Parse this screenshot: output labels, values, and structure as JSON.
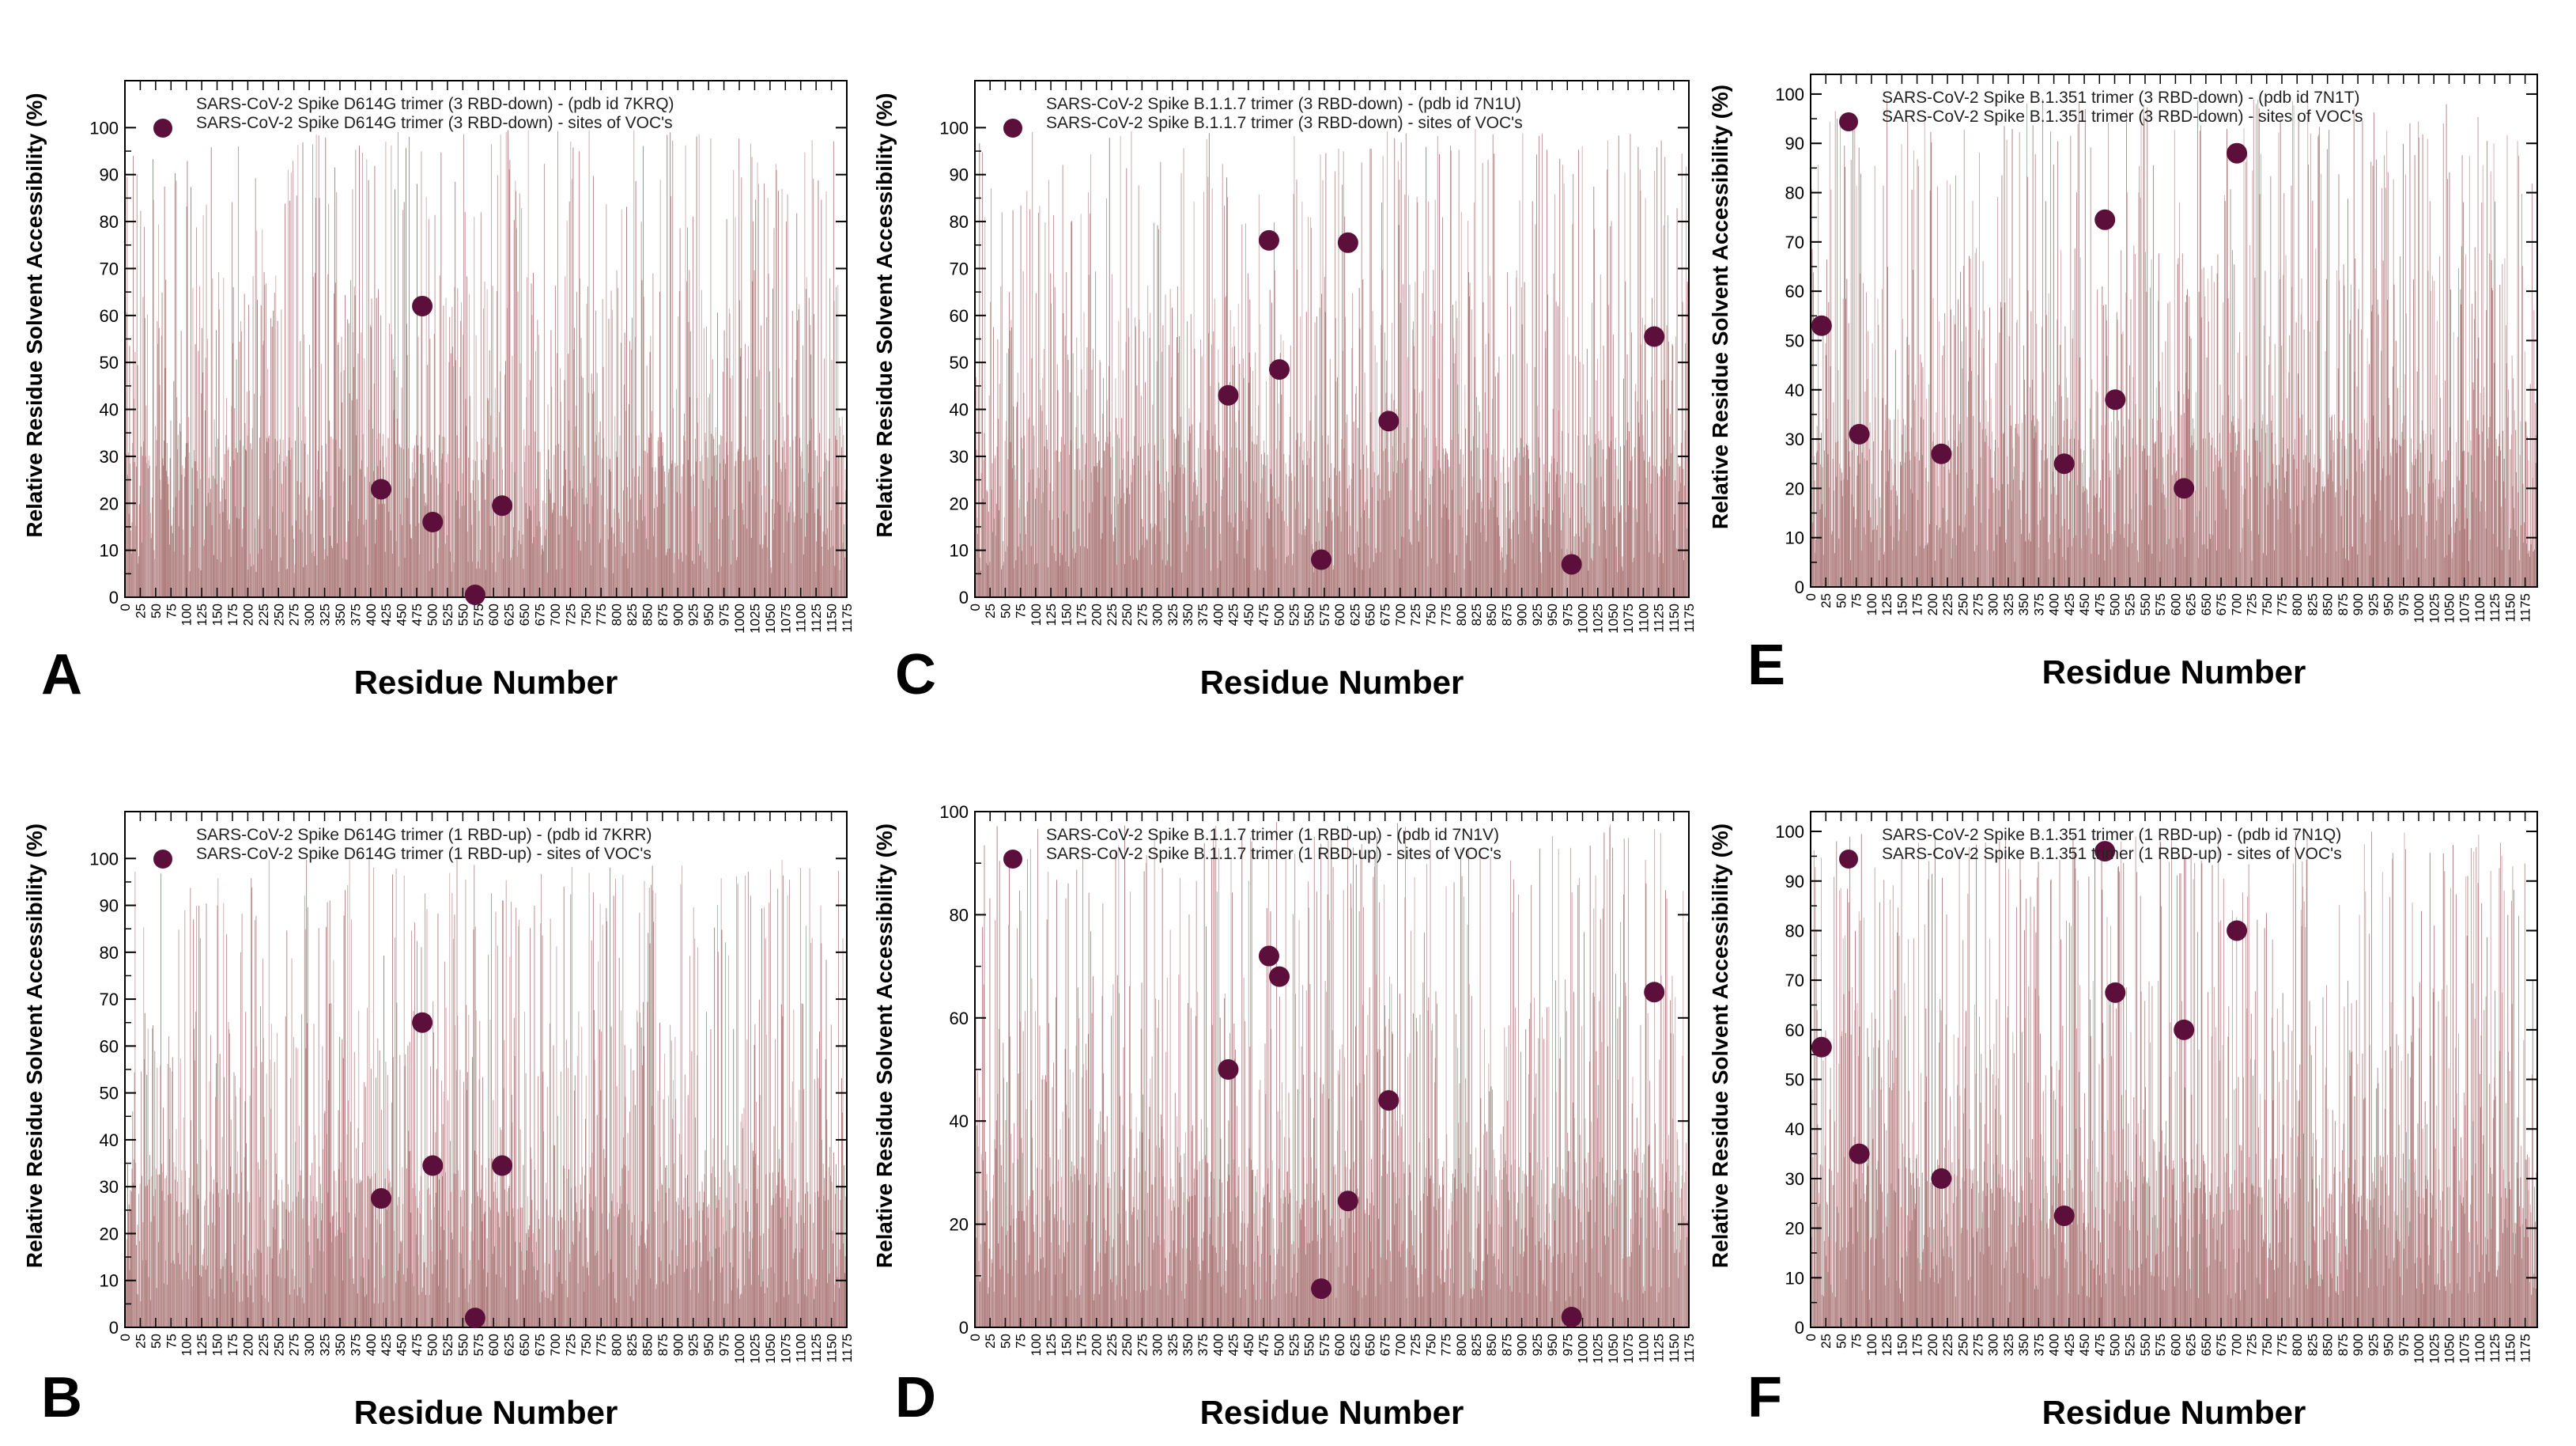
{
  "colors": {
    "bars": "#a97373",
    "dots": "#5c0f3a",
    "axes": "#000000"
  },
  "chart_data": [
    {
      "panel": "A",
      "type": "bar",
      "title": "",
      "xlabel": "Residue Number",
      "ylabel": "Relative Residue Solvent Accessibility (%)",
      "xlim": [
        0,
        1175
      ],
      "ylim": [
        0,
        110
      ],
      "y_ticks": [
        0,
        10,
        20,
        30,
        40,
        50,
        60,
        70,
        80,
        90,
        100
      ],
      "x_ticks": [
        0,
        25,
        50,
        75,
        100,
        125,
        150,
        175,
        200,
        225,
        250,
        275,
        300,
        325,
        350,
        375,
        400,
        425,
        450,
        475,
        500,
        525,
        550,
        575,
        600,
        625,
        650,
        675,
        700,
        725,
        750,
        775,
        800,
        825,
        850,
        875,
        900,
        925,
        950,
        975,
        1000,
        1025,
        1050,
        1075,
        1100,
        1125,
        1150,
        1175
      ],
      "legend": {
        "placement": "top-left",
        "entries": [
          "SARS-CoV-2 Spike D614G trimer (3 RBD-down)  - (pdb id 7KRQ)",
          "SARS-CoV-2 Spike D614G trimer (3 RBD-down) - sites of VOC's"
        ]
      },
      "series": [
        {
          "name": "SARS-CoV-2 Spike D614G trimer (3 RBD-down)  - (pdb id 7KRQ)",
          "kind": "bars",
          "x_range": [
            0,
            1175
          ],
          "y_range": [
            0,
            100
          ]
        },
        {
          "name": "SARS-CoV-2 Spike D614G trimer (3 RBD-down) - sites of VOC's",
          "kind": "scatter",
          "x": [
            417,
            484,
            501,
            570,
            614
          ],
          "y": [
            23,
            62,
            16,
            0.5,
            19.5
          ]
        }
      ]
    },
    {
      "panel": "B",
      "type": "bar",
      "title": "",
      "xlabel": "Residue Number",
      "ylabel": "Relative Residue Solvent Accessibility (%)",
      "xlim": [
        0,
        1175
      ],
      "ylim": [
        0,
        110
      ],
      "y_ticks": [
        0,
        10,
        20,
        30,
        40,
        50,
        60,
        70,
        80,
        90,
        100
      ],
      "x_ticks": [
        0,
        25,
        50,
        75,
        100,
        125,
        150,
        175,
        200,
        225,
        250,
        275,
        300,
        325,
        350,
        375,
        400,
        425,
        450,
        475,
        500,
        525,
        550,
        575,
        600,
        625,
        650,
        675,
        700,
        725,
        750,
        775,
        800,
        825,
        850,
        875,
        900,
        925,
        950,
        975,
        1000,
        1025,
        1050,
        1075,
        1100,
        1125,
        1150,
        1175
      ],
      "legend": {
        "placement": "top-left",
        "entries": [
          "SARS-CoV-2 Spike D614G trimer (1 RBD-up)  - (pdb id 7KRR)",
          "SARS-CoV-2 Spike D614G trimer (1 RBD-up) - sites of VOC's"
        ]
      },
      "series": [
        {
          "name": "SARS-CoV-2 Spike D614G trimer (1 RBD-up)  - (pdb id 7KRR)",
          "kind": "bars",
          "x_range": [
            0,
            1175
          ],
          "y_range": [
            0,
            100
          ]
        },
        {
          "name": "SARS-CoV-2 Spike D614G trimer (1 RBD-up) - sites of VOC's",
          "kind": "scatter",
          "x": [
            417,
            484,
            501,
            570,
            614
          ],
          "y": [
            27.5,
            65,
            34.5,
            2,
            34.5
          ]
        }
      ]
    },
    {
      "panel": "C",
      "type": "bar",
      "title": "",
      "xlabel": "Residue Number",
      "ylabel": "Relative Residue Solvent Accessibility (%)",
      "xlim": [
        0,
        1175
      ],
      "ylim": [
        0,
        110
      ],
      "y_ticks": [
        0,
        10,
        20,
        30,
        40,
        50,
        60,
        70,
        80,
        90,
        100
      ],
      "x_ticks": [
        0,
        25,
        50,
        75,
        100,
        125,
        150,
        175,
        200,
        225,
        250,
        275,
        300,
        325,
        350,
        375,
        400,
        425,
        450,
        475,
        500,
        525,
        550,
        575,
        600,
        625,
        650,
        675,
        700,
        725,
        750,
        775,
        800,
        825,
        850,
        875,
        900,
        925,
        950,
        975,
        1000,
        1025,
        1050,
        1075,
        1100,
        1125,
        1150,
        1175
      ],
      "legend": {
        "placement": "top-left",
        "entries": [
          "SARS-CoV-2 Spike B.1.1.7 trimer (3 RBD-down)  - (pdb id 7N1U)",
          "SARS-CoV-2 Spike B.1.1.7 trimer (3 RBD-down) - sites of VOC's"
        ]
      },
      "series": [
        {
          "name": "SARS-CoV-2 Spike B.1.1.7 trimer (3 RBD-down)  - (pdb id 7N1U)",
          "kind": "bars",
          "x_range": [
            0,
            1175
          ],
          "y_range": [
            0,
            100
          ]
        },
        {
          "name": "SARS-CoV-2 Spike B.1.1.7 trimer (3 RBD-down) - sites of VOC's",
          "kind": "scatter",
          "x": [
            417,
            484,
            501,
            570,
            614,
            681,
            982,
            1118
          ],
          "y": [
            43,
            76,
            48.5,
            8,
            75.5,
            37.5,
            7,
            55.5
          ]
        }
      ]
    },
    {
      "panel": "D",
      "type": "bar",
      "title": "",
      "xlabel": "Residue Number",
      "ylabel": "Relative Residue Solvent Accessibility (%)",
      "xlim": [
        0,
        1175
      ],
      "ylim": [
        0,
        100
      ],
      "y_ticks": [
        0,
        20,
        40,
        60,
        80,
        100
      ],
      "x_ticks": [
        0,
        25,
        50,
        75,
        100,
        125,
        150,
        175,
        200,
        225,
        250,
        275,
        300,
        325,
        350,
        375,
        400,
        425,
        450,
        475,
        500,
        525,
        550,
        575,
        600,
        625,
        650,
        675,
        700,
        725,
        750,
        775,
        800,
        825,
        850,
        875,
        900,
        925,
        950,
        975,
        1000,
        1025,
        1050,
        1075,
        1100,
        1125,
        1150,
        1175
      ],
      "legend": {
        "placement": "top-left",
        "entries": [
          "SARS-CoV-2 Spike B.1.1.7 trimer (1 RBD-up)  - (pdb id 7N1V)",
          "SARS-CoV-2 Spike B.1.1.7 trimer (1 RBD-up) - sites of VOC's"
        ]
      },
      "series": [
        {
          "name": "SARS-CoV-2 Spike B.1.1.7 trimer (1 RBD-up)  - (pdb id 7N1V)",
          "kind": "bars",
          "x_range": [
            0,
            1175
          ],
          "y_range": [
            0,
            98
          ]
        },
        {
          "name": "SARS-CoV-2 Spike B.1.1.7 trimer (1 RBD-up) - sites of VOC's",
          "kind": "scatter",
          "x": [
            417,
            484,
            501,
            570,
            614,
            681,
            982,
            1118
          ],
          "y": [
            50,
            72,
            68,
            7.5,
            24.5,
            44,
            2,
            65
          ]
        }
      ]
    },
    {
      "panel": "E",
      "type": "bar",
      "title": "",
      "xlabel": "Residue Number",
      "ylabel": "Relative Residue Solvent Accessibility (%)",
      "xlim": [
        0,
        1195
      ],
      "ylim": [
        0,
        104
      ],
      "y_ticks": [
        0,
        10,
        20,
        30,
        40,
        50,
        60,
        70,
        80,
        90,
        100
      ],
      "x_ticks": [
        0,
        25,
        50,
        75,
        100,
        125,
        150,
        175,
        200,
        225,
        250,
        275,
        300,
        325,
        350,
        375,
        400,
        425,
        450,
        475,
        500,
        525,
        550,
        575,
        600,
        625,
        650,
        675,
        700,
        725,
        750,
        775,
        800,
        825,
        850,
        875,
        900,
        925,
        950,
        975,
        1000,
        1025,
        1050,
        1075,
        1100,
        1125,
        1150,
        1175
      ],
      "legend": {
        "placement": "top-left",
        "entries": [
          "SARS-CoV-2 Spike B.1.351 trimer (3 RBD-down)  - (pdb id 7N1T)",
          "SARS-CoV-2 Spike B.1.351 trimer (3 RBD-down) - sites of VOC's"
        ]
      },
      "series": [
        {
          "name": "SARS-CoV-2 Spike B.1.351 trimer (3 RBD-down)  - (pdb id 7N1T)",
          "kind": "bars",
          "x_range": [
            0,
            1195
          ],
          "y_range": [
            0,
            100
          ]
        },
        {
          "name": "SARS-CoV-2 Spike B.1.351 trimer (3 RBD-down) - sites of VOC's",
          "kind": "scatter",
          "x": [
            18,
            80,
            215,
            417,
            484,
            501,
            614,
            701
          ],
          "y": [
            53,
            31,
            27,
            25,
            74.5,
            38,
            20,
            88
          ]
        }
      ]
    },
    {
      "panel": "F",
      "type": "bar",
      "title": "",
      "xlabel": "Residue Number",
      "ylabel": "Relative Residue Solvent Accessibility (%)",
      "xlim": [
        0,
        1195
      ],
      "ylim": [
        0,
        104
      ],
      "y_ticks": [
        0,
        10,
        20,
        30,
        40,
        50,
        60,
        70,
        80,
        90,
        100
      ],
      "x_ticks": [
        0,
        25,
        50,
        75,
        100,
        125,
        150,
        175,
        200,
        225,
        250,
        275,
        300,
        325,
        350,
        375,
        400,
        425,
        450,
        475,
        500,
        525,
        550,
        575,
        600,
        625,
        650,
        675,
        700,
        725,
        750,
        775,
        800,
        825,
        850,
        875,
        900,
        925,
        950,
        975,
        1000,
        1025,
        1050,
        1075,
        1100,
        1125,
        1150,
        1175
      ],
      "legend": {
        "placement": "top-left",
        "entries": [
          "SARS-CoV-2 Spike B.1.351 trimer (1 RBD-up)  - (pdb id 7N1Q)",
          "SARS-CoV-2 Spike B.1.351 trimer (1 RBD-up) - sites of VOC's"
        ]
      },
      "series": [
        {
          "name": "SARS-CoV-2 Spike B.1.351 trimer (1 RBD-up)  - (pdb id 7N1Q)",
          "kind": "bars",
          "x_range": [
            0,
            1195
          ],
          "y_range": [
            0,
            100
          ]
        },
        {
          "name": "SARS-CoV-2 Spike B.1.351 trimer (1 RBD-up) - sites of VOC's",
          "kind": "scatter",
          "x": [
            18,
            80,
            215,
            417,
            484,
            501,
            614,
            701
          ],
          "y": [
            56.5,
            35,
            30,
            22.5,
            96,
            67.5,
            60,
            80
          ]
        }
      ]
    }
  ]
}
